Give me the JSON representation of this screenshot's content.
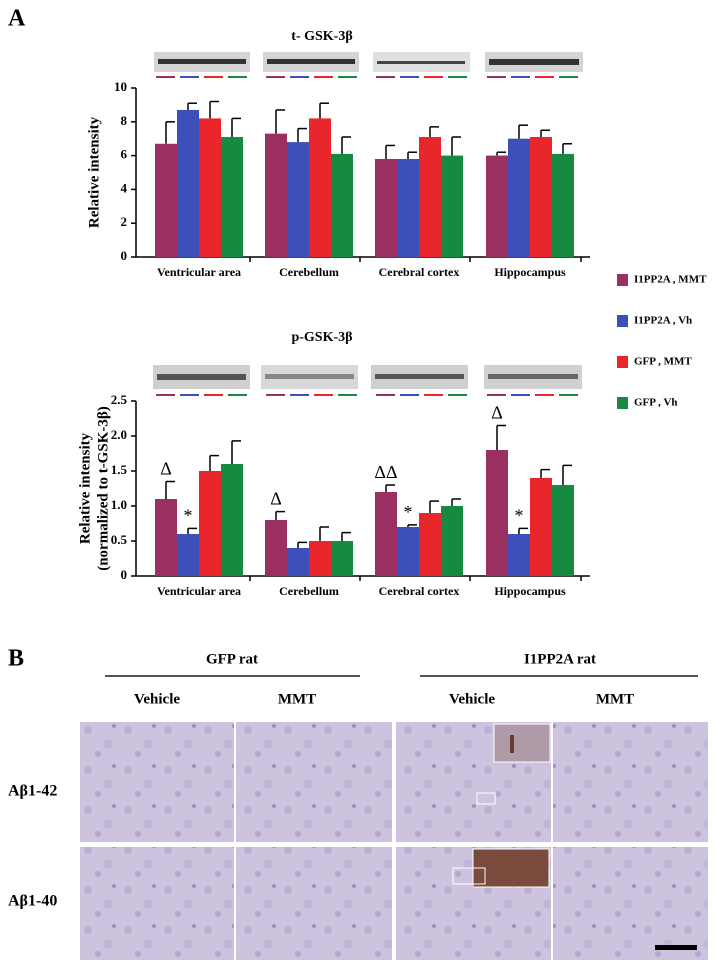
{
  "panel_labels": [
    "A",
    "B"
  ],
  "chart_data": [
    {
      "type": "bar",
      "title": "t- GSK-3β",
      "ylabel": [
        "Relative intensity"
      ],
      "categories": [
        "Ventricular area",
        "Cerebellum",
        "Cerebral cortex",
        "Hippocampus"
      ],
      "ylim": [
        0,
        10
      ],
      "yticks": [
        0,
        2,
        4,
        6,
        8,
        10
      ],
      "legend": "right",
      "series": [
        {
          "name": "I1PP2A , MMT",
          "color": "#9a2f62",
          "values": [
            6.7,
            7.3,
            5.8,
            6.0
          ],
          "errors": [
            1.3,
            1.4,
            0.8,
            0.2
          ]
        },
        {
          "name": "I1PP2A , Vh",
          "color": "#3d4fb8",
          "values": [
            8.7,
            6.8,
            5.8,
            7.0
          ],
          "errors": [
            0.4,
            0.8,
            0.4,
            0.8
          ]
        },
        {
          "name": "GFP , MMT",
          "color": "#e8262b",
          "values": [
            8.2,
            8.2,
            7.1,
            7.1
          ],
          "errors": [
            1.0,
            0.9,
            0.6,
            0.4
          ]
        },
        {
          "name": "GFP ,  Vh",
          "color": "#178a42",
          "values": [
            7.1,
            6.1,
            6.0,
            6.1
          ],
          "errors": [
            1.1,
            1.0,
            1.1,
            0.6
          ]
        }
      ]
    },
    {
      "type": "bar",
      "title": "p-GSK-3β",
      "ylabel": [
        "Relative intensity",
        "(normalized to t-GSK-3β)"
      ],
      "categories": [
        "Ventricular area",
        "Cerebellum",
        "Cerebral cortex",
        "Hippocampus"
      ],
      "ylim": [
        0,
        2.5
      ],
      "yticks": [
        0,
        0.5,
        {
          "value": 1,
          "label": "1.0"
        },
        1.5,
        {
          "value": 2,
          "label": "2.0"
        },
        2.5
      ],
      "series": [
        {
          "name": "I1PP2A , MMT",
          "color": "#9a2f62",
          "values": [
            1.1,
            0.8,
            1.2,
            1.8
          ],
          "errors": [
            0.25,
            0.12,
            0.1,
            0.35
          ],
          "annotations": [
            "Δ",
            "Δ",
            "ΔΔ",
            "Δ"
          ]
        },
        {
          "name": "I1PP2A , Vh",
          "color": "#3d4fb8",
          "values": [
            0.6,
            0.4,
            0.7,
            0.6
          ],
          "errors": [
            0.08,
            0.08,
            0.03,
            0.08
          ],
          "annotations": [
            "*",
            null,
            "*",
            "*"
          ]
        },
        {
          "name": "GFP , MMT",
          "color": "#e8262b",
          "values": [
            1.5,
            0.5,
            0.9,
            1.4
          ],
          "errors": [
            0.22,
            0.2,
            0.17,
            0.12
          ]
        },
        {
          "name": "GFP ,  Vh",
          "color": "#178a42",
          "values": [
            1.6,
            0.5,
            1.0,
            1.3
          ],
          "errors": [
            0.33,
            0.12,
            0.1,
            0.28
          ]
        }
      ]
    }
  ],
  "panel_b": {
    "groups": [
      "GFP rat",
      "I1PP2A rat"
    ],
    "columns": [
      "Vehicle",
      "MMT",
      "Vehicle",
      "MMT"
    ],
    "rows": [
      "Aβ1-42",
      "Aβ1-40"
    ]
  }
}
